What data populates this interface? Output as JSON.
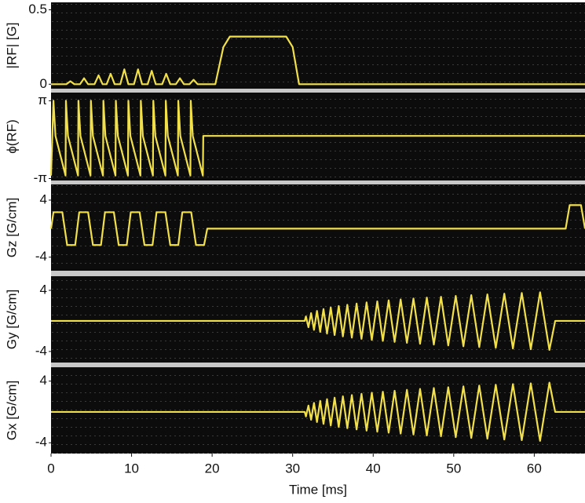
{
  "chart_data": [
    {
      "type": "line",
      "y_label": "|RF| [G]",
      "color": "#f2e04a",
      "xlim": [
        0,
        66.3
      ],
      "ylim": [
        -0.03,
        0.55
      ],
      "yticks": [
        0,
        0.5
      ],
      "x": [
        0,
        1.9,
        2.4,
        2.9,
        3.6,
        4.1,
        4.6,
        5.4,
        5.9,
        6.4,
        6.9,
        7.4,
        7.9,
        8.6,
        9.1,
        9.6,
        10.3,
        10.8,
        11.3,
        12.0,
        12.5,
        13.0,
        13.8,
        14.3,
        14.8,
        15.5,
        16.0,
        16.5,
        17.2,
        17.7,
        18.2,
        20.4,
        21.4,
        22.2,
        29.2,
        30.0,
        30.8,
        66.3
      ],
      "values": [
        0,
        0,
        0.02,
        0,
        0,
        0.04,
        0,
        0,
        0.06,
        0,
        0,
        0.07,
        0,
        0,
        0.1,
        0,
        0,
        0.1,
        0,
        0,
        0.09,
        0,
        0,
        0.07,
        0,
        0,
        0.04,
        0,
        0,
        0.03,
        0,
        0,
        0.25,
        0.32,
        0.32,
        0.25,
        0,
        0
      ]
    },
    {
      "type": "line",
      "y_label": "ϕ(RF)",
      "color": "#f2e04a",
      "xlim": [
        0,
        66.3
      ],
      "ylim": [
        -3.3,
        3.8
      ],
      "yticks": [
        {
          "value": 3.1416,
          "label": "π"
        },
        {
          "value": -3.1416,
          "label": "-π"
        }
      ],
      "x": [
        0,
        0.3,
        0.55,
        1.8,
        1.85,
        2.1,
        3.35,
        3.4,
        3.65,
        4.9,
        4.95,
        5.2,
        6.45,
        6.5,
        6.75,
        8.0,
        8.05,
        8.3,
        9.55,
        9.6,
        9.85,
        11.1,
        11.15,
        11.4,
        12.65,
        12.7,
        12.95,
        14.2,
        14.25,
        14.5,
        15.75,
        15.8,
        16.05,
        17.3,
        17.35,
        17.6,
        18.85,
        18.9,
        66.3
      ],
      "values": [
        -2.9,
        3.14,
        0.3,
        -2.9,
        3.14,
        0.3,
        -2.9,
        3.14,
        0.3,
        -2.9,
        3.14,
        0.3,
        -2.9,
        3.14,
        0.3,
        -2.9,
        3.14,
        0.3,
        -2.9,
        3.14,
        0.3,
        -2.9,
        3.14,
        0.3,
        -2.9,
        3.14,
        0.3,
        -2.9,
        3.14,
        0.3,
        -2.9,
        3.14,
        0.3,
        -2.9,
        3.14,
        0.3,
        -2.9,
        0.3,
        0.3
      ]
    },
    {
      "type": "line",
      "y_label": "Gz [G/cm]",
      "color": "#f2e04a",
      "xlim": [
        0,
        66.3
      ],
      "ylim": [
        -5.9,
        6.2
      ],
      "yticks": [
        4,
        -4
      ],
      "x": [
        0,
        0.3,
        1.4,
        2.0,
        3.0,
        3.5,
        4.6,
        5.2,
        6.2,
        6.7,
        7.8,
        8.4,
        9.4,
        9.9,
        11.0,
        11.6,
        12.6,
        13.1,
        14.2,
        14.8,
        15.8,
        16.3,
        17.4,
        18.0,
        19.0,
        19.4,
        63.9,
        64.4,
        65.8,
        66.3
      ],
      "values": [
        0,
        2.3,
        2.3,
        -2.3,
        -2.3,
        2.3,
        2.3,
        -2.3,
        -2.3,
        2.3,
        2.3,
        -2.3,
        -2.3,
        2.3,
        2.3,
        -2.3,
        -2.3,
        2.3,
        2.3,
        -2.3,
        -2.3,
        2.3,
        2.3,
        -2.3,
        -2.3,
        0,
        0,
        3.3,
        3.3,
        0
      ]
    },
    {
      "type": "line",
      "y_label": "Gy [G/cm]",
      "color": "#f2e04a",
      "xlim": [
        0,
        66.3
      ],
      "ylim": [
        -5.45,
        5.85
      ],
      "yticks": [
        4,
        -4
      ],
      "x": [
        0,
        31.5,
        31.65,
        31.96,
        32.29,
        32.65,
        33.02,
        33.42,
        33.83,
        34.27,
        34.73,
        35.21,
        35.72,
        36.24,
        36.79,
        37.35,
        37.94,
        38.55,
        39.18,
        39.83,
        40.51,
        41.2,
        41.92,
        42.66,
        43.41,
        44.19,
        45.0,
        45.82,
        46.66,
        47.53,
        48.42,
        49.32,
        50.25,
        51.2,
        52.18,
        53.17,
        54.18,
        55.22,
        56.28,
        57.35,
        58.45,
        59.57,
        60.72,
        61.88,
        62.6,
        66.3
      ],
      "values": [
        0,
        0,
        0.59,
        -0.83,
        1.02,
        -1.17,
        1.31,
        -1.44,
        1.55,
        -1.66,
        1.76,
        -1.85,
        1.95,
        -2.03,
        2.11,
        -2.19,
        2.27,
        -2.35,
        2.42,
        -2.49,
        2.56,
        -2.62,
        2.69,
        -2.75,
        2.81,
        -2.87,
        2.93,
        -2.99,
        3.05,
        -3.1,
        3.16,
        -3.21,
        3.27,
        -3.32,
        3.37,
        -3.42,
        3.47,
        -3.52,
        3.57,
        -3.61,
        3.66,
        -3.71,
        3.75,
        -3.8,
        0,
        0
      ]
    },
    {
      "type": "line",
      "y_label": "Gx [G/cm]",
      "color": "#f2e04a",
      "xlim": [
        0,
        66.3
      ],
      "ylim": [
        -5.4,
        5.8
      ],
      "yticks": [
        4,
        -4
      ],
      "xticks": [
        0,
        10,
        20,
        30,
        40,
        50,
        60
      ],
      "x_label": "Time [ms]",
      "x": [
        0,
        31.5,
        31.65,
        31.96,
        32.29,
        32.65,
        33.02,
        33.42,
        33.83,
        34.27,
        34.73,
        35.21,
        35.72,
        36.24,
        36.79,
        37.35,
        37.94,
        38.55,
        39.18,
        39.83,
        40.51,
        41.2,
        41.92,
        42.66,
        43.41,
        44.19,
        45.0,
        45.82,
        46.66,
        47.53,
        48.42,
        49.32,
        50.25,
        51.2,
        52.18,
        53.17,
        54.18,
        55.22,
        56.28,
        57.35,
        58.45,
        59.57,
        60.72,
        61.88,
        62.6,
        66.3
      ],
      "values": [
        0,
        0,
        -0.59,
        0.83,
        -1.02,
        1.17,
        -1.31,
        1.44,
        -1.55,
        1.66,
        -1.76,
        1.85,
        -1.95,
        2.03,
        -2.11,
        2.19,
        -2.27,
        2.35,
        -2.42,
        2.49,
        -2.56,
        2.62,
        -2.69,
        2.75,
        -2.81,
        2.87,
        -2.93,
        2.99,
        -3.05,
        3.1,
        -3.16,
        3.21,
        -3.27,
        3.32,
        -3.37,
        3.42,
        -3.47,
        3.52,
        -3.57,
        3.61,
        -3.66,
        3.71,
        -3.75,
        3.8,
        0,
        0
      ]
    }
  ]
}
